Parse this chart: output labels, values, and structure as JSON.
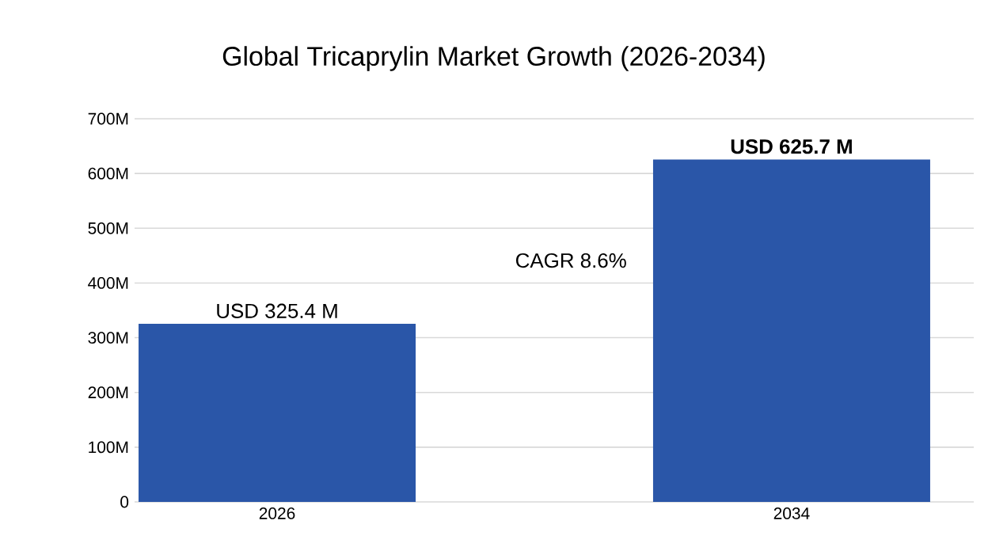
{
  "chart_data": {
    "type": "bar",
    "title": "Global Tricaprylin Market Growth (2026-2034)",
    "categories": [
      "2026",
      "2034"
    ],
    "values": [
      325.4,
      625.7
    ],
    "value_labels": [
      "USD 325.4 M",
      "**USD 625.7 M**"
    ],
    "color": "#2a56a8",
    "ylim": [
      0,
      700
    ],
    "yticks": [
      0,
      {
        "value": 100,
        "label": "100M"
      },
      {
        "value": 200,
        "label": "200M"
      },
      {
        "value": 300,
        "label": "300M"
      },
      {
        "value": 400,
        "label": "400M"
      },
      {
        "value": 500,
        "label": "500M"
      },
      {
        "value": 600,
        "label": "600M"
      },
      {
        "value": 700,
        "label": "700M"
      }
    ],
    "grid": "y",
    "annotations": [
      "CAGR 8.6%"
    ]
  }
}
